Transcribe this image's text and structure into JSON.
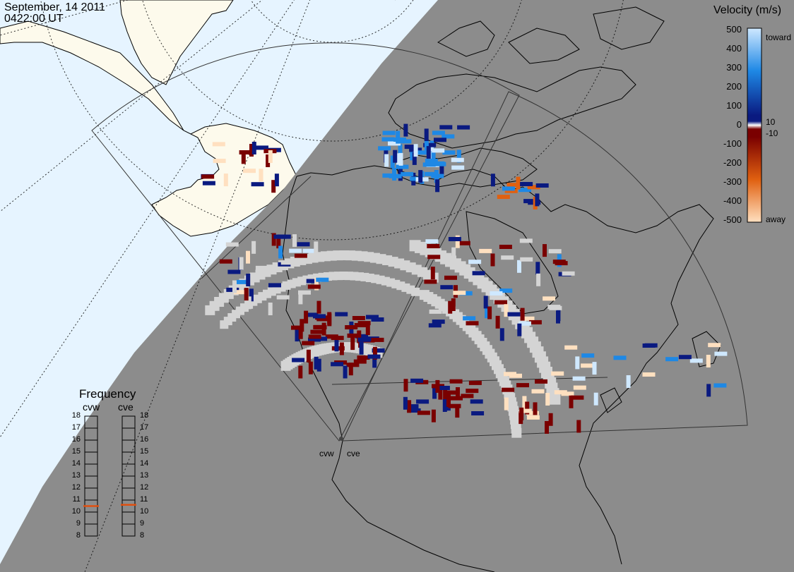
{
  "header": {
    "date": "September, 14 2011",
    "time": "0422:00 UT"
  },
  "velocity_legend": {
    "title": "Velocity (m/s)",
    "toward_label": "toward",
    "away_label": "away",
    "labels": [
      "500",
      "400",
      "300",
      "200",
      "100",
      "10",
      "0",
      "-10",
      "-100",
      "-200",
      "-300",
      "-400",
      "-500"
    ],
    "colors": {
      "toward_light": "#cfe8ff",
      "toward_mid": "#1e88e5",
      "toward_dark": "#0a1a80",
      "away_dark": "#7a0000",
      "away_mid": "#e06010",
      "away_light": "#ffe0c0",
      "zero": "#ffffff"
    }
  },
  "frequency_panel": {
    "title": "Frequency",
    "radars": [
      {
        "name": "cvw",
        "value": 10.5
      },
      {
        "name": "cve",
        "value": 10.6
      }
    ],
    "scale": [
      "18",
      "17",
      "16",
      "15",
      "14",
      "13",
      "12",
      "11",
      "10",
      "9",
      "8"
    ],
    "marker_color": "#e05010"
  },
  "radar_sites": [
    {
      "name": "cvw"
    },
    {
      "name": "cve"
    }
  ],
  "map_colors": {
    "night": "#8c8c8c",
    "ocean_day": "#e6f4ff",
    "land_day": "#fdfaec",
    "ground_scatter": "#d4d4d4",
    "coast": "#000000"
  }
}
